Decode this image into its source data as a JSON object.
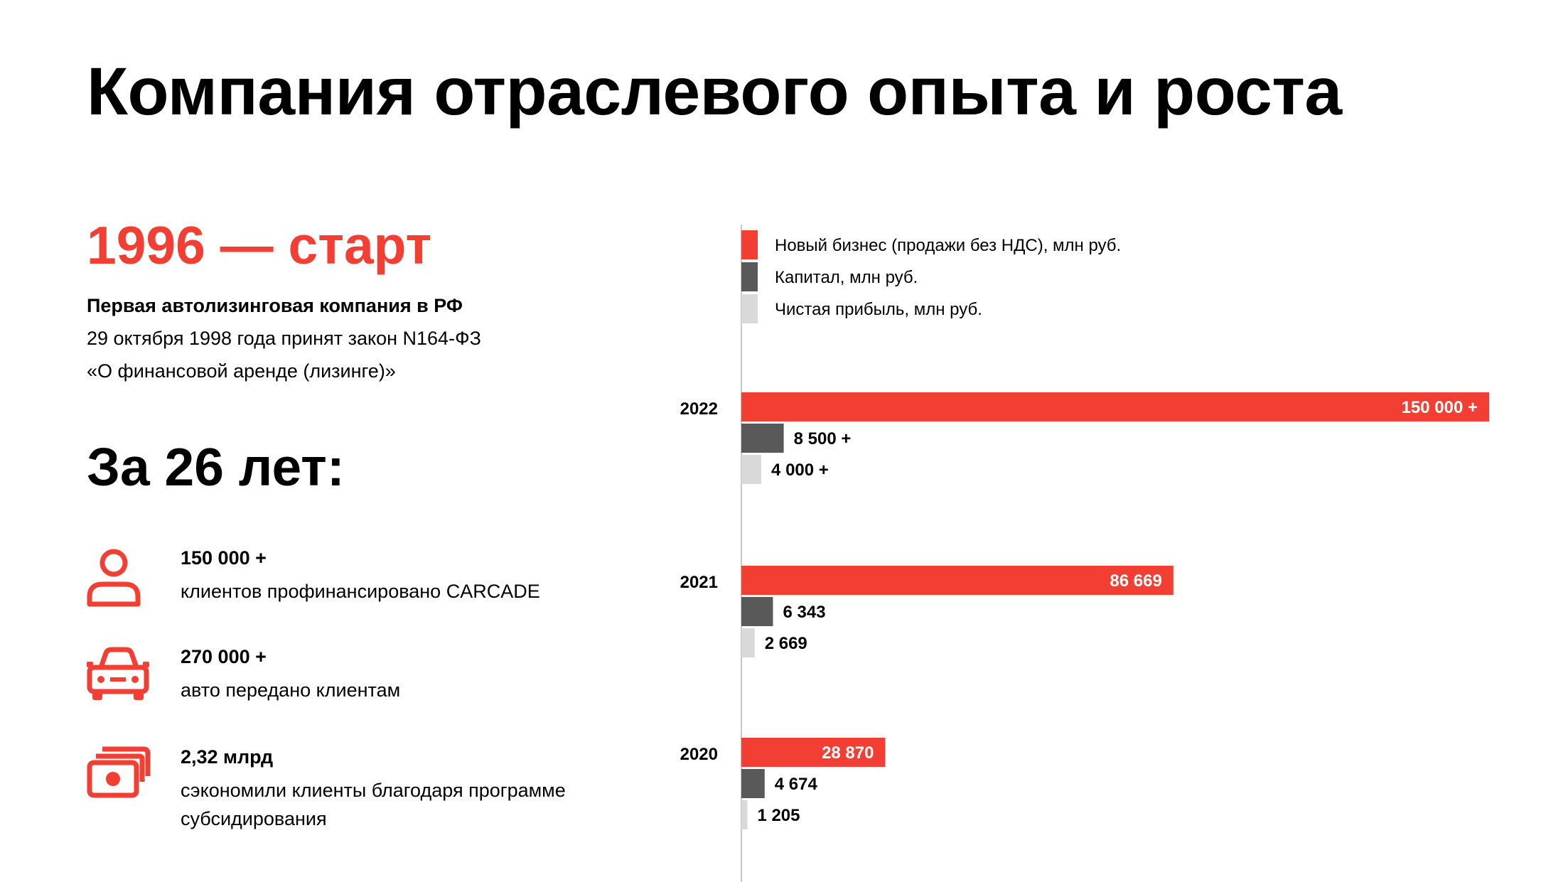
{
  "title": "Компания отраслевого опыта и роста",
  "start": {
    "heading": "1996 — старт",
    "subtitle": "Первая автолизинговая компания в РФ",
    "line1": "29 октября 1998 года принят закон N164-ФЗ",
    "line2": "«О финансовой аренде (лизинге)»"
  },
  "years_heading": "За 26 лет:",
  "stats": [
    {
      "value": "150 000 +",
      "description": "клиентов профинансировано CARCADE",
      "icon": "person-icon"
    },
    {
      "value": "270 000 +",
      "description": "авто передано клиентам",
      "icon": "car-icon"
    },
    {
      "value": "2,32 млрд",
      "description": "сэкономили клиенты благодаря программе субсидирования",
      "icon": "money-icon"
    }
  ],
  "colors": {
    "accent": "#f33f33",
    "dark": "#595959",
    "light": "#d9d9d9"
  },
  "chart_data": {
    "type": "bar",
    "orientation": "horizontal",
    "categories": [
      "2022",
      "2021",
      "2020"
    ],
    "series": [
      {
        "name": "Новый бизнес (продажи без НДС), млн руб.",
        "color": "#f33f33",
        "values": [
          150000,
          86669,
          28870
        ],
        "labels": [
          "150 000 +",
          "86 669",
          "28 870"
        ]
      },
      {
        "name": "Капитал, млн руб.",
        "color": "#595959",
        "values": [
          8500,
          6343,
          4674
        ],
        "labels": [
          "8 500 +",
          "6 343",
          "4 674"
        ]
      },
      {
        "name": "Чистая прибыль, млн руб.",
        "color": "#d9d9d9",
        "values": [
          4000,
          2669,
          1205
        ],
        "labels": [
          "4 000 +",
          "2 669",
          "1 205"
        ]
      }
    ],
    "legend_position": "top-left",
    "grid": false
  }
}
